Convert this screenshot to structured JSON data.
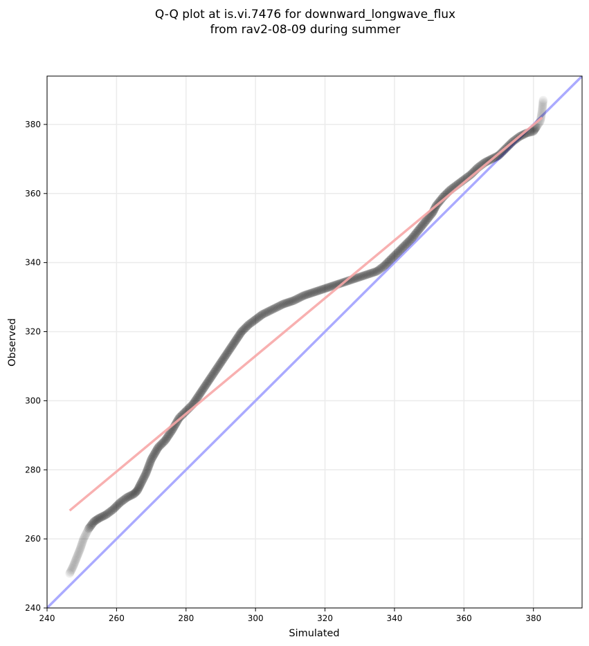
{
  "chart_data": {
    "type": "scatter",
    "title_lines": [
      "Q-Q plot at is.vi.7476 for downward_longwave_flux",
      "from rav2-08-09 during summer"
    ],
    "xlabel": "Simulated",
    "ylabel": "Observed",
    "xlim": [
      240,
      394
    ],
    "ylim": [
      240,
      394
    ],
    "xticks": [
      240,
      260,
      280,
      300,
      320,
      340,
      360,
      380
    ],
    "yticks": [
      240,
      260,
      280,
      300,
      320,
      340,
      360,
      380
    ],
    "grid": true,
    "colors": {
      "points": "#000000",
      "identity_line": "#aaaaff",
      "fit_line": "#f7a7a7",
      "grid": "#ebebeb"
    },
    "identity_line": {
      "x": [
        240,
        394
      ],
      "y": [
        240,
        394
      ]
    },
    "fit_line": {
      "x": [
        246.5,
        382.5
      ],
      "y": [
        268.2,
        382.0
      ]
    },
    "quantile_curve": {
      "x": [
        246.5,
        247.5,
        248.5,
        249.5,
        250.5,
        252,
        253.5,
        255,
        257,
        259,
        261,
        263,
        265,
        266,
        267,
        268.5,
        270,
        272,
        274,
        276,
        278,
        280,
        282,
        284,
        286,
        288,
        290,
        292,
        294,
        296,
        298,
        300,
        302,
        305,
        308,
        311,
        314,
        317,
        320,
        323,
        326,
        329,
        332,
        335,
        337,
        339,
        341,
        343,
        345,
        347,
        349,
        351,
        352,
        354,
        356,
        358,
        360,
        362,
        364,
        366,
        368,
        370,
        372,
        374,
        376,
        378,
        380,
        381,
        382,
        382.5,
        382.8
      ],
      "y": [
        250,
        252,
        254.5,
        257,
        260,
        263,
        265,
        266,
        267,
        268.5,
        270.5,
        272,
        273,
        274,
        276,
        279,
        283,
        286.5,
        288.5,
        291.5,
        295,
        297,
        299,
        302,
        305,
        308,
        311,
        314,
        317,
        320,
        322,
        323.5,
        325,
        326.5,
        328,
        329,
        330.5,
        331.5,
        332.5,
        333.5,
        334.5,
        335.5,
        336.5,
        337.5,
        339,
        341,
        343,
        345,
        347,
        349.5,
        352,
        354.5,
        356.5,
        359,
        361,
        362.5,
        364,
        365.5,
        367.5,
        369,
        370,
        371,
        373,
        375,
        376.5,
        377.5,
        378,
        379.5,
        381,
        384,
        387
      ]
    }
  }
}
